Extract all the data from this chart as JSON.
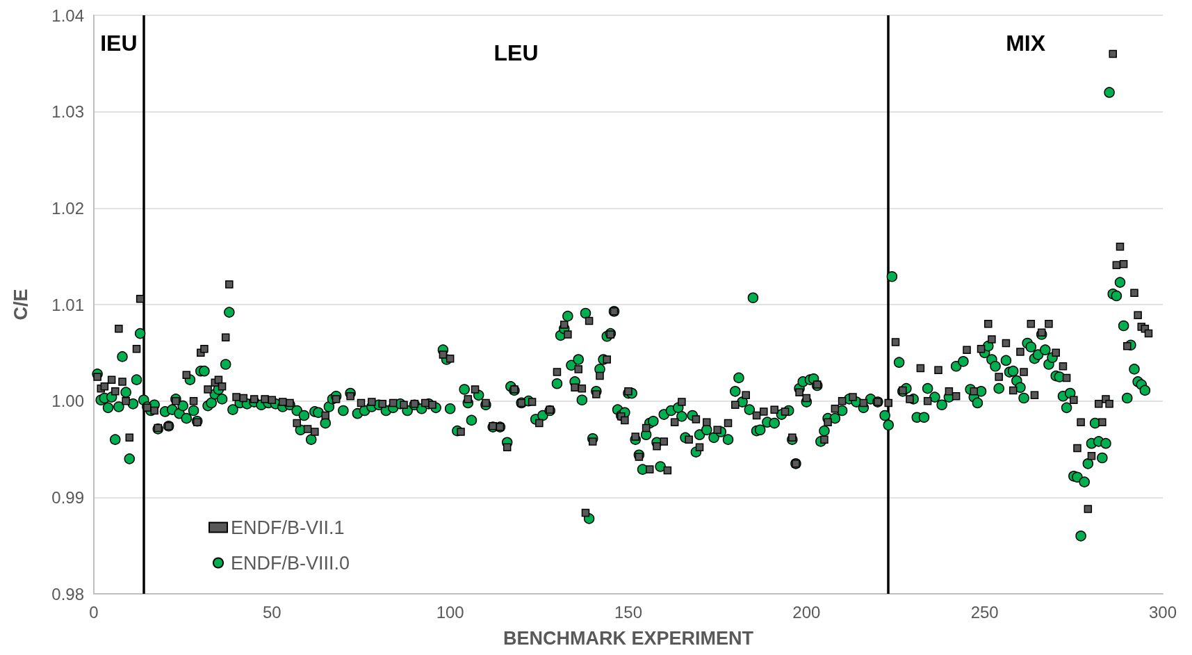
{
  "chart_data": {
    "type": "scatter",
    "xlabel": "BENCHMARK EXPERIMENT",
    "ylabel": "C/E",
    "xlim": [
      0,
      300
    ],
    "xticks": [
      0,
      50,
      100,
      150,
      200,
      250,
      300
    ],
    "ylim": [
      0.98,
      1.04
    ],
    "yticks": [
      0.98,
      0.99,
      {
        "value": 1,
        "label": "1.00"
      },
      1.01,
      1.02,
      1.03,
      1.04
    ],
    "grid": "y",
    "legend": "bottom left",
    "ref_lines": [
      {
        "axis": "x",
        "value": 14,
        "color": "#000000",
        "line_style": "solid"
      },
      {
        "axis": "x",
        "value": 223,
        "color": "#000000",
        "line_style": "solid"
      }
    ],
    "annotations": [
      "IEU",
      "LEU",
      "MIX"
    ],
    "series": [
      {
        "name": "ENDF/B-VII.1",
        "color": "#595959",
        "marker": "square",
        "x": [
          1,
          2,
          3,
          5,
          6,
          7,
          8,
          9,
          10,
          12,
          13,
          15,
          17,
          18,
          21,
          23,
          26,
          28,
          29,
          30,
          31,
          32,
          34,
          35,
          36,
          37,
          38,
          40,
          42,
          45,
          48,
          50,
          53,
          55,
          57,
          60,
          62,
          65,
          68,
          72,
          75,
          78,
          81,
          84,
          87,
          90,
          93,
          95,
          98,
          100,
          103,
          105,
          107,
          110,
          112,
          114,
          116,
          118,
          120,
          123,
          125,
          128,
          130,
          132,
          133,
          135,
          136,
          137,
          138,
          139,
          140,
          141,
          142,
          144,
          145,
          146,
          148,
          149,
          150,
          152,
          153,
          155,
          156,
          158,
          160,
          161,
          163,
          165,
          167,
          169,
          170,
          172,
          175,
          178,
          180,
          183,
          186,
          188,
          191,
          194,
          196,
          197,
          198,
          200,
          203,
          205,
          206,
          208,
          210,
          213,
          216,
          220,
          223,
          225,
          227,
          229,
          232,
          234,
          237,
          240,
          242,
          245,
          247,
          249,
          251,
          252,
          254,
          256,
          258,
          260,
          261,
          263,
          264,
          266,
          268,
          270,
          272,
          273,
          275,
          276,
          277,
          279,
          280,
          282,
          283,
          284,
          285,
          286,
          287,
          288,
          289,
          290,
          292,
          293,
          294,
          295,
          296
        ],
        "values": [
          1.0025,
          1.0013,
          1.0015,
          1.0022,
          1.001,
          1.0075,
          1.002,
          1.0,
          0.9962,
          1.0054,
          1.0106,
          0.9993,
          0.999,
          0.9972,
          0.9974,
          1.0,
          1.0027,
          1.0,
          0.9978,
          1.005,
          1.0054,
          1.0012,
          1.0019,
          1.0022,
          1.0015,
          1.0066,
          1.0121,
          1.0004,
          1.0003,
          1.0002,
          1.0002,
          1.0001,
          0.9999,
          0.9998,
          0.9977,
          0.9971,
          0.9968,
          0.9985,
          1.0002,
          1.0005,
          0.9998,
          0.9999,
          0.9997,
          0.9998,
          0.9996,
          0.9997,
          0.9998,
          0.9996,
          1.0048,
          1.0044,
          0.9968,
          1.0002,
          1.0012,
          0.9998,
          0.9974,
          0.9973,
          0.9952,
          1.0012,
          0.9998,
          0.9999,
          0.9977,
          0.9991,
          1.003,
          1.0079,
          1.0069,
          1.0014,
          1.0033,
          1.0013,
          0.9884,
          1.0083,
          0.9958,
          1.0007,
          1.0026,
          1.0043,
          1.0069,
          1.0093,
          0.9984,
          0.998,
          1.001,
          0.9963,
          0.9942,
          0.9972,
          0.9929,
          0.9953,
          0.9958,
          0.9928,
          0.9978,
          0.9999,
          0.996,
          0.9981,
          0.9952,
          0.9978,
          0.997,
          0.9977,
          0.9996,
          1.0006,
          0.9985,
          0.9989,
          0.9991,
          0.9989,
          0.9962,
          0.9935,
          1.0009,
          1.0003,
          1.0017,
          0.996,
          0.9978,
          0.9992,
          1.0,
          1.0004,
          0.9998,
          0.9999,
          0.9998,
          1.0061,
          1.0011,
          1.0002,
          1.0034,
          1.0,
          1.0032,
          1.001,
          1.0005,
          1.0053,
          1.001,
          1.0054,
          1.008,
          1.0064,
          1.0025,
          1.006,
          1.0011,
          1.0051,
          1.003,
          1.008,
          1.0006,
          1.0071,
          1.008,
          1.005,
          1.0036,
          1.0024,
          1.0001,
          0.9951,
          0.9978,
          0.9888,
          0.9943,
          0.9997,
          0.9978,
          1.0002,
          0.9997,
          1.036,
          1.0141,
          1.016,
          1.0142,
          1.0057,
          1.0112,
          1.0089,
          1.0077,
          1.0075,
          1.007
        ]
      },
      {
        "name": "ENDF/B-VIII.0",
        "color": "#00b050",
        "marker": "circle",
        "x": [
          1,
          2,
          3,
          4,
          5,
          6,
          7,
          8,
          9,
          10,
          11,
          12,
          13,
          14,
          15,
          16,
          17,
          18,
          20,
          21,
          22,
          23,
          24,
          25,
          26,
          27,
          28,
          29,
          30,
          31,
          32,
          33,
          34,
          35,
          36,
          37,
          38,
          39,
          41,
          43,
          45,
          47,
          49,
          51,
          53,
          55,
          57,
          58,
          59,
          61,
          62,
          63,
          65,
          66,
          67,
          68,
          70,
          72,
          74,
          76,
          78,
          80,
          82,
          84,
          86,
          88,
          90,
          92,
          94,
          96,
          98,
          99,
          100,
          102,
          104,
          105,
          106,
          108,
          110,
          112,
          114,
          116,
          117,
          118,
          120,
          122,
          124,
          126,
          128,
          130,
          131,
          132,
          133,
          134,
          135,
          136,
          137,
          138,
          139,
          140,
          141,
          142,
          143,
          144,
          145,
          146,
          147,
          148,
          149,
          150,
          151,
          152,
          153,
          154,
          155,
          156,
          157,
          158,
          159,
          160,
          162,
          164,
          165,
          166,
          168,
          169,
          170,
          172,
          174,
          176,
          178,
          180,
          181,
          182,
          184,
          185,
          186,
          187,
          189,
          191,
          193,
          195,
          196,
          197,
          198,
          199,
          200,
          201,
          202,
          203,
          204,
          205,
          206,
          208,
          210,
          212,
          214,
          216,
          218,
          220,
          222,
          223,
          224,
          226,
          227,
          228,
          230,
          231,
          233,
          234,
          236,
          238,
          240,
          242,
          244,
          246,
          247,
          248,
          249,
          250,
          251,
          252,
          253,
          254,
          256,
          257,
          258,
          259,
          260,
          261,
          262,
          263,
          264,
          265,
          266,
          267,
          268,
          269,
          270,
          271,
          272,
          273,
          274,
          275,
          276,
          277,
          278,
          279,
          280,
          281,
          282,
          283,
          284,
          285,
          286,
          287,
          288,
          289,
          290,
          291,
          292,
          293,
          294,
          295
        ],
        "values": [
          1.0028,
          1.0001,
          1.0003,
          0.9993,
          1.0004,
          0.996,
          0.9994,
          1.0046,
          1.0009,
          0.994,
          0.9997,
          1.0022,
          1.007,
          1.0001,
          0.9994,
          0.999,
          0.9996,
          0.9971,
          0.9989,
          0.9974,
          0.9991,
          1.0002,
          0.9987,
          0.9995,
          0.9982,
          1.0022,
          0.999,
          0.9979,
          1.0031,
          1.0031,
          0.9995,
          0.9998,
          1.0007,
          1.0012,
          1.0002,
          1.0038,
          1.0092,
          0.9991,
          0.9998,
          0.9997,
          0.9999,
          0.9996,
          0.9998,
          0.9997,
          0.9994,
          0.9996,
          0.999,
          0.997,
          0.9985,
          0.996,
          0.9989,
          0.9988,
          0.9977,
          0.9994,
          1.0002,
          1.0005,
          0.999,
          1.0008,
          0.9987,
          0.999,
          0.9994,
          0.9996,
          0.999,
          0.9993,
          0.9997,
          0.999,
          0.9996,
          0.9992,
          0.9997,
          0.9993,
          1.0053,
          1.0043,
          0.9992,
          0.9969,
          1.0012,
          0.9998,
          0.998,
          1.0006,
          0.9996,
          0.9973,
          0.9973,
          0.9957,
          1.0015,
          1.0011,
          0.9998,
          1.0,
          0.9981,
          0.9985,
          0.999,
          1.0018,
          1.0068,
          1.0075,
          1.0088,
          1.0037,
          1.002,
          1.0043,
          1.0001,
          1.0091,
          0.9878,
          0.9961,
          1.001,
          1.0033,
          1.0043,
          1.0067,
          1.007,
          1.0093,
          0.9991,
          0.9985,
          0.9988,
          1.0008,
          1.0008,
          0.996,
          0.9944,
          0.9929,
          0.9965,
          0.9977,
          0.9979,
          0.9957,
          0.9932,
          0.9986,
          0.999,
          0.9993,
          0.9984,
          0.9962,
          0.9985,
          0.9947,
          0.9965,
          0.997,
          0.9962,
          0.9968,
          0.996,
          1.001,
          1.0024,
          0.9999,
          0.9991,
          1.0107,
          0.9969,
          0.997,
          0.9978,
          0.9977,
          0.9986,
          0.999,
          0.996,
          0.9935,
          1.0013,
          1.002,
          0.9999,
          1.0022,
          1.0023,
          1.0016,
          0.9958,
          0.9969,
          0.9982,
          0.9982,
          0.999,
          1.0002,
          0.9999,
          0.9993,
          1.0002,
          0.9999,
          0.9985,
          0.9975,
          1.0129,
          1.004,
          1.001,
          1.0013,
          1.0002,
          0.9983,
          0.9983,
          1.0013,
          1.0004,
          0.9996,
          1.0004,
          1.0036,
          1.0041,
          1.0012,
          1.0004,
          0.9998,
          1.001,
          1.005,
          1.0057,
          1.0043,
          1.0036,
          1.0013,
          1.0042,
          1.003,
          1.0031,
          1.0021,
          1.0014,
          1.0003,
          1.006,
          1.0056,
          1.0044,
          1.0048,
          1.0069,
          1.0053,
          1.0038,
          1.0045,
          1.0026,
          1.0025,
          1.0005,
          0.9993,
          1.0008,
          0.9922,
          0.9921,
          0.986,
          0.9916,
          0.9935,
          0.9956,
          0.9977,
          0.9958,
          0.9941,
          0.9956,
          1.032,
          1.0111,
          1.0109,
          1.0123,
          1.0078,
          1.0003,
          1.0058,
          1.0033,
          1.002,
          1.0017,
          1.0011
        ]
      }
    ]
  }
}
